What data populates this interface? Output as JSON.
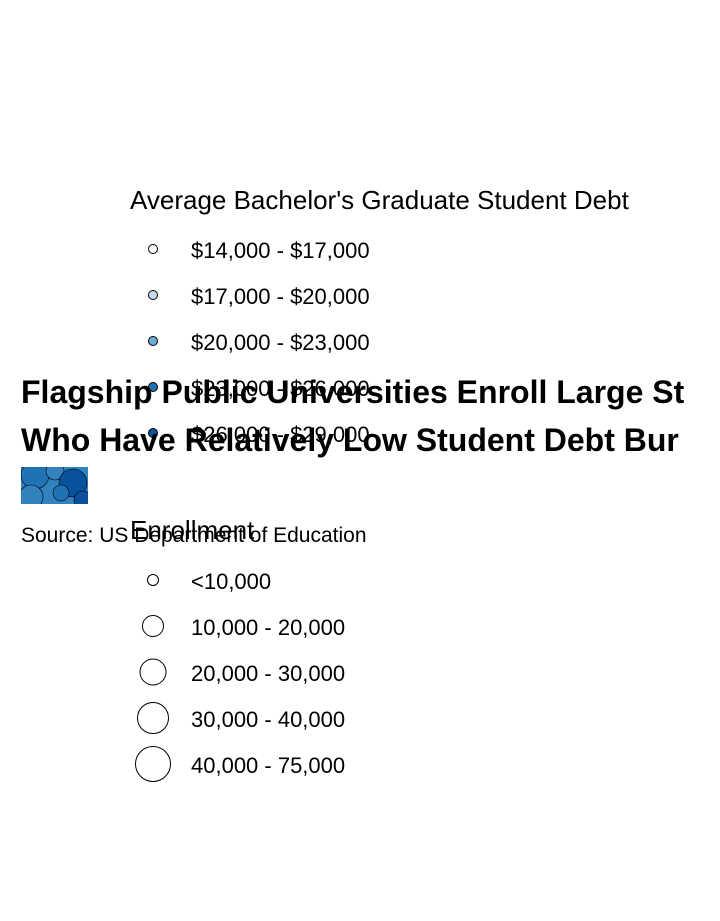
{
  "chart_data": {
    "type": "scatter",
    "title": "Flagship Public Universities Enroll Large St",
    "subtitle": "Who Have Relatively Low Student Debt Bur",
    "source": "Source: US Department of Education",
    "legends": {
      "debt": {
        "title": "Average Bachelor's Graduate Student Debt",
        "items": [
          {
            "label": "$14,000 - $17,000",
            "color": "#f7fbff"
          },
          {
            "label": "$17,000 - $20,000",
            "color": "#c6dbef"
          },
          {
            "label": "$20,000 - $23,000",
            "color": "#6baed6"
          },
          {
            "label": "$23,000 - $26,000",
            "color": "#2171b5"
          },
          {
            "label": "$26,000 - $29,000",
            "color": "#08519c"
          }
        ]
      },
      "enrollment": {
        "title": "Enrollment",
        "items": [
          {
            "label": "<10,000",
            "size_rank": 1
          },
          {
            "label": "10,000 - 20,000",
            "size_rank": 2
          },
          {
            "label": "20,000 - 30,000",
            "size_rank": 3
          },
          {
            "label": "30,000 - 40,000",
            "size_rank": 4
          },
          {
            "label": "40,000 - 75,000",
            "size_rank": 5
          }
        ]
      }
    }
  },
  "colors": {
    "marker_stroke": "#000000",
    "map_blue_dark": "#08519c",
    "map_blue_mid": "#2171b5",
    "map_blue_light": "#3182bd"
  }
}
